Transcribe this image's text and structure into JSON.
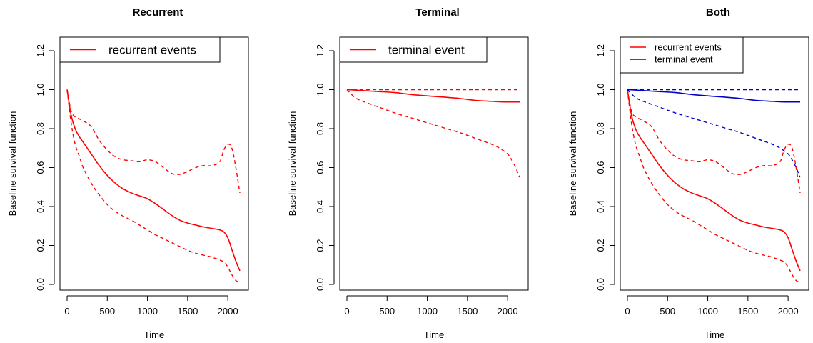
{
  "chart_data": [
    {
      "type": "line",
      "title": "Recurrent",
      "xlabel": "Time",
      "ylabel": "Baseline survival function",
      "xlim": [
        0,
        2150
      ],
      "ylim": [
        0,
        1.2
      ],
      "xticks": [
        "0",
        "500",
        "1000",
        "1500",
        "2000"
      ],
      "yticks": [
        "0.0",
        "0.2",
        "0.4",
        "0.6",
        "0.8",
        "1.0",
        "1.2"
      ],
      "legend": {
        "position": "top-left",
        "entries": [
          "recurrent events"
        ]
      },
      "series": [
        {
          "name": "recurrent events",
          "color": "#ff0000",
          "x": [
            0,
            50,
            100,
            150,
            200,
            300,
            400,
            500,
            600,
            700,
            800,
            900,
            1000,
            1100,
            1200,
            1300,
            1400,
            1500,
            1600,
            1700,
            1800,
            1900,
            1950,
            2000,
            2050,
            2100,
            2150
          ],
          "y": [
            1.0,
            0.87,
            0.8,
            0.76,
            0.73,
            0.67,
            0.61,
            0.56,
            0.52,
            0.49,
            0.47,
            0.455,
            0.44,
            0.415,
            0.385,
            0.355,
            0.33,
            0.315,
            0.305,
            0.295,
            0.288,
            0.28,
            0.27,
            0.24,
            0.18,
            0.12,
            0.07
          ],
          "lower": [
            1.0,
            0.83,
            0.72,
            0.66,
            0.6,
            0.52,
            0.46,
            0.41,
            0.375,
            0.35,
            0.33,
            0.305,
            0.28,
            0.255,
            0.235,
            0.215,
            0.195,
            0.175,
            0.16,
            0.15,
            0.14,
            0.125,
            0.115,
            0.09,
            0.05,
            0.02,
            0.01
          ],
          "upper": [
            1.0,
            0.89,
            0.86,
            0.85,
            0.84,
            0.81,
            0.74,
            0.69,
            0.655,
            0.64,
            0.635,
            0.63,
            0.64,
            0.63,
            0.6,
            0.57,
            0.565,
            0.58,
            0.6,
            0.61,
            0.61,
            0.63,
            0.69,
            0.72,
            0.7,
            0.6,
            0.47
          ]
        }
      ]
    },
    {
      "type": "line",
      "title": "Terminal",
      "xlabel": "Time",
      "ylabel": "Baseline survival function",
      "xlim": [
        0,
        2150
      ],
      "ylim": [
        0,
        1.2
      ],
      "xticks": [
        "0",
        "500",
        "1000",
        "1500",
        "2000"
      ],
      "yticks": [
        "0.0",
        "0.2",
        "0.4",
        "0.6",
        "0.8",
        "1.0",
        "1.2"
      ],
      "legend": {
        "position": "top-left",
        "entries": [
          "terminal event"
        ]
      },
      "series": [
        {
          "name": "terminal event",
          "color": "#ff0000",
          "x": [
            0,
            100,
            200,
            400,
            600,
            800,
            1000,
            1200,
            1400,
            1600,
            1800,
            1900,
            2000,
            2050,
            2100,
            2150
          ],
          "y": [
            1.0,
            0.998,
            0.995,
            0.99,
            0.985,
            0.975,
            0.968,
            0.962,
            0.955,
            0.945,
            0.94,
            0.938,
            0.937,
            0.937,
            0.937,
            0.937
          ],
          "lower": [
            1.0,
            0.96,
            0.94,
            0.91,
            0.88,
            0.855,
            0.83,
            0.805,
            0.78,
            0.75,
            0.72,
            0.7,
            0.67,
            0.64,
            0.6,
            0.55
          ],
          "upper": [
            1.0,
            1.0,
            1.0,
            1.0,
            1.0,
            1.0,
            1.0,
            1.0,
            1.0,
            1.0,
            1.0,
            1.0,
            1.0,
            1.0,
            1.0,
            1.0
          ]
        }
      ]
    },
    {
      "type": "line",
      "title": "Both",
      "xlabel": "Time",
      "ylabel": "Baseline survival function",
      "xlim": [
        0,
        2150
      ],
      "ylim": [
        0,
        1.2
      ],
      "xticks": [
        "0",
        "500",
        "1000",
        "1500",
        "2000"
      ],
      "yticks": [
        "0.0",
        "0.2",
        "0.4",
        "0.6",
        "0.8",
        "1.0",
        "1.2"
      ],
      "legend": {
        "position": "top-left",
        "entries": [
          "recurrent events",
          "terminal event"
        ]
      },
      "series": [
        {
          "name": "recurrent events",
          "color": "#ff0000",
          "x": [
            0,
            50,
            100,
            150,
            200,
            300,
            400,
            500,
            600,
            700,
            800,
            900,
            1000,
            1100,
            1200,
            1300,
            1400,
            1500,
            1600,
            1700,
            1800,
            1900,
            1950,
            2000,
            2050,
            2100,
            2150
          ],
          "y": [
            1.0,
            0.87,
            0.8,
            0.76,
            0.73,
            0.67,
            0.61,
            0.56,
            0.52,
            0.49,
            0.47,
            0.455,
            0.44,
            0.415,
            0.385,
            0.355,
            0.33,
            0.315,
            0.305,
            0.295,
            0.288,
            0.28,
            0.27,
            0.24,
            0.18,
            0.12,
            0.07
          ],
          "lower": [
            1.0,
            0.83,
            0.72,
            0.66,
            0.6,
            0.52,
            0.46,
            0.41,
            0.375,
            0.35,
            0.33,
            0.305,
            0.28,
            0.255,
            0.235,
            0.215,
            0.195,
            0.175,
            0.16,
            0.15,
            0.14,
            0.125,
            0.115,
            0.09,
            0.05,
            0.02,
            0.01
          ],
          "upper": [
            1.0,
            0.89,
            0.86,
            0.85,
            0.84,
            0.81,
            0.74,
            0.69,
            0.655,
            0.64,
            0.635,
            0.63,
            0.64,
            0.63,
            0.6,
            0.57,
            0.565,
            0.58,
            0.6,
            0.61,
            0.61,
            0.63,
            0.69,
            0.72,
            0.7,
            0.6,
            0.47
          ]
        },
        {
          "name": "terminal event",
          "color": "#0000cc",
          "x": [
            0,
            100,
            200,
            400,
            600,
            800,
            1000,
            1200,
            1400,
            1600,
            1800,
            1900,
            2000,
            2050,
            2100,
            2150
          ],
          "y": [
            1.0,
            0.998,
            0.995,
            0.99,
            0.985,
            0.975,
            0.968,
            0.962,
            0.955,
            0.945,
            0.94,
            0.938,
            0.937,
            0.937,
            0.937,
            0.937
          ],
          "lower": [
            1.0,
            0.96,
            0.94,
            0.91,
            0.88,
            0.855,
            0.83,
            0.805,
            0.78,
            0.75,
            0.72,
            0.7,
            0.67,
            0.64,
            0.6,
            0.55
          ],
          "upper": [
            1.0,
            1.0,
            1.0,
            1.0,
            1.0,
            1.0,
            1.0,
            1.0,
            1.0,
            1.0,
            1.0,
            1.0,
            1.0,
            1.0,
            1.0,
            1.0
          ]
        }
      ]
    }
  ]
}
